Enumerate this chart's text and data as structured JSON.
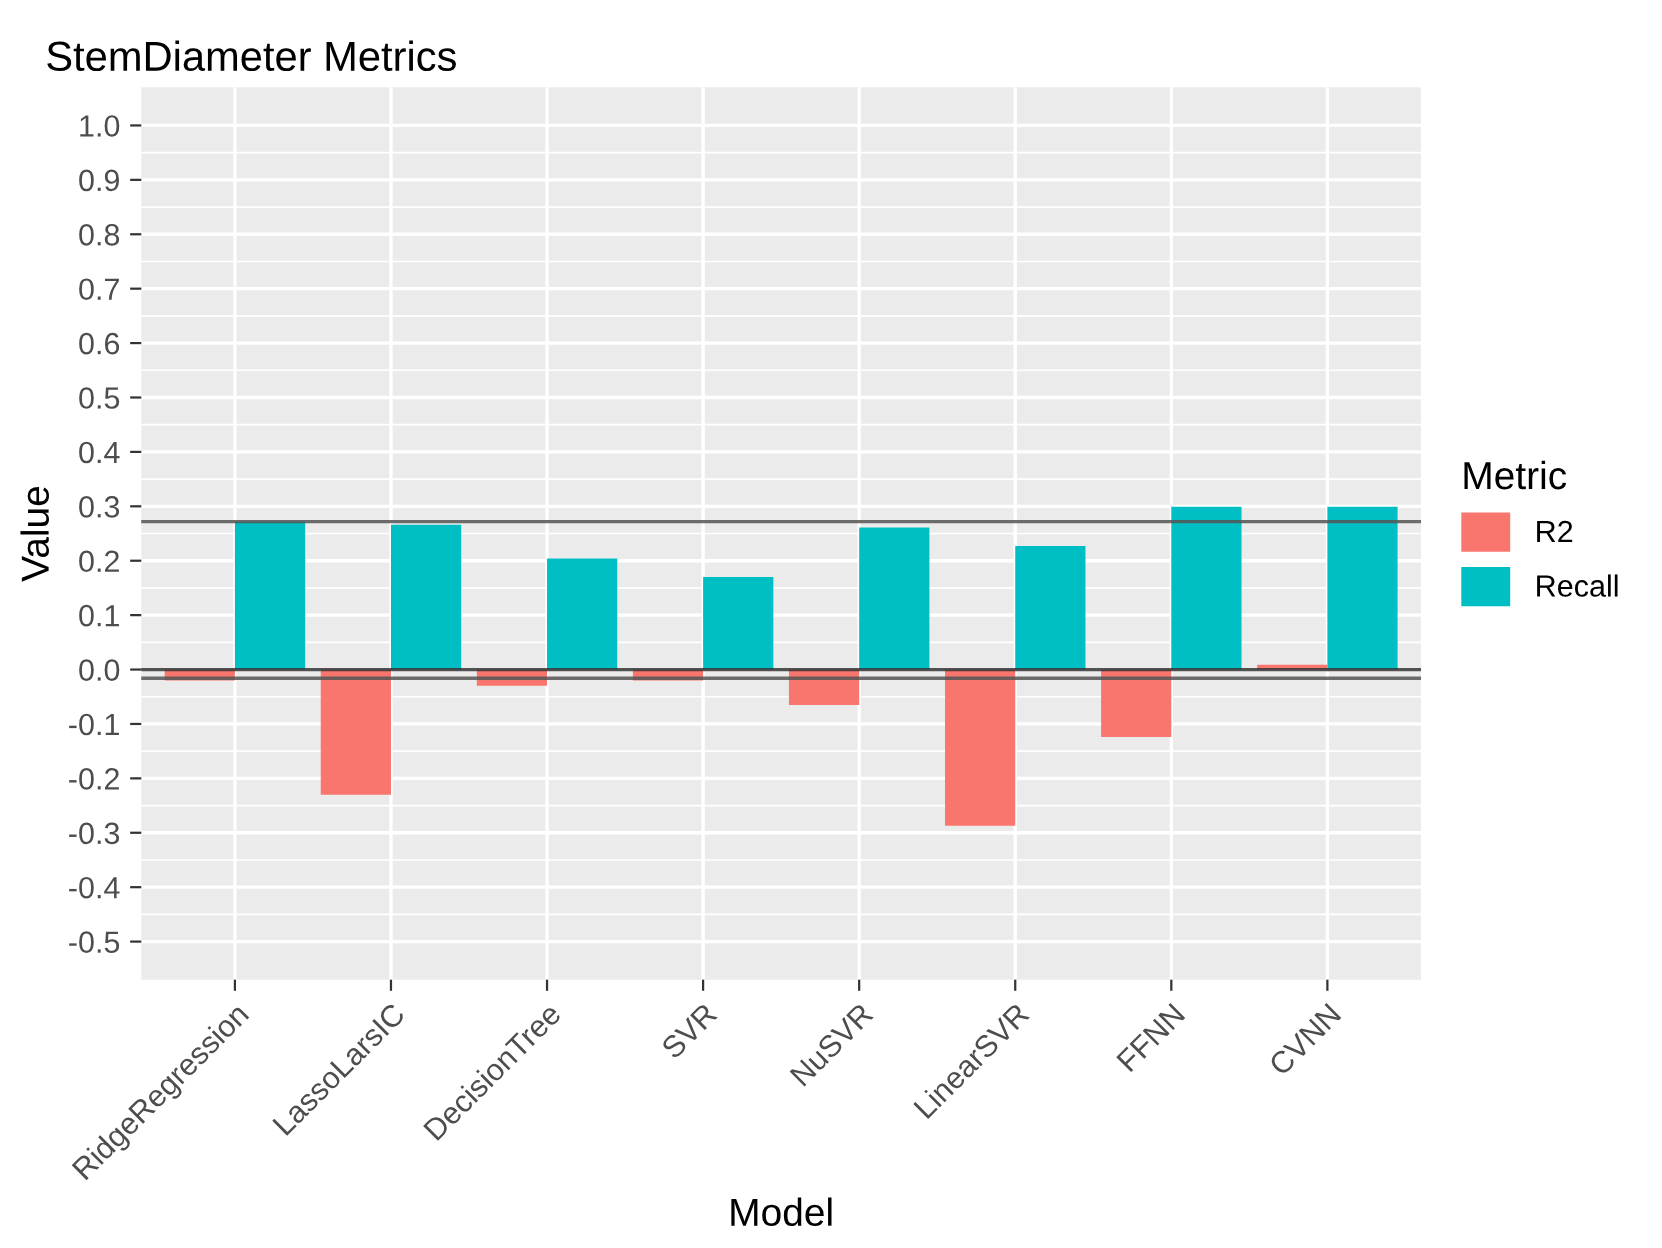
{
  "chart_data": {
    "type": "bar",
    "title": "StemDiameter Metrics",
    "xlabel": "Model",
    "ylabel": "Value",
    "legend_title": "Metric",
    "categories": [
      "RidgeRegression",
      "LassoLarsIC",
      "DecisionTree",
      "SVR",
      "NuSVR",
      "LinearSVR",
      "FFNN",
      "CVNN"
    ],
    "series": [
      {
        "name": "R2",
        "color": "#f8766d",
        "values": [
          -0.02,
          -0.23,
          -0.03,
          -0.02,
          -0.065,
          -0.287,
          -0.124,
          0.009
        ]
      },
      {
        "name": "Recall",
        "color": "#00bfc4",
        "values": [
          0.272,
          0.266,
          0.204,
          0.17,
          0.261,
          0.227,
          0.299,
          0.299
        ]
      }
    ],
    "ylim": [
      -0.57,
      1.07
    ],
    "yticks": [
      {
        "value": -0.5,
        "label": "-0.5"
      },
      {
        "value": -0.4,
        "label": "-0.4"
      },
      {
        "value": -0.3,
        "label": "-0.3"
      },
      {
        "value": -0.2,
        "label": "-0.2"
      },
      {
        "value": -0.1,
        "label": "-0.1"
      },
      {
        "value": 0,
        "label": "0.0"
      },
      {
        "value": 0.1,
        "label": "0.1"
      },
      {
        "value": 0.2,
        "label": "0.2"
      },
      {
        "value": 0.3,
        "label": "0.3"
      },
      {
        "value": 0.4,
        "label": "0.4"
      },
      {
        "value": 0.5,
        "label": "0.5"
      },
      {
        "value": 0.6,
        "label": "0.6"
      },
      {
        "value": 0.7,
        "label": "0.7"
      },
      {
        "value": 0.8,
        "label": "0.8"
      },
      {
        "value": 0.9,
        "label": "0.9"
      },
      {
        "value": 1,
        "label": "1.0"
      }
    ],
    "ref_lines": [
      {
        "axis": "y",
        "value": 0.272,
        "color": "#555555"
      },
      {
        "axis": "y",
        "value": 0,
        "color": "#333333"
      },
      {
        "axis": "y",
        "value": -0.016,
        "color": "#555555"
      }
    ],
    "grid": true,
    "legend": "right"
  }
}
